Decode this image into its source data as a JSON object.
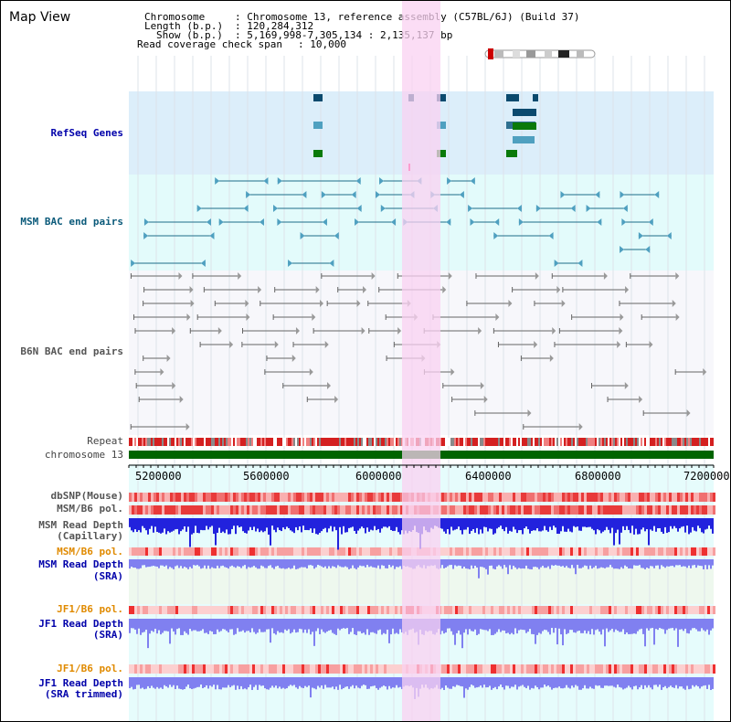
{
  "title": "Map View",
  "info": {
    "chromosome_label": "Chromosome",
    "chromosome_value": ": Chromosome 13, reference assembly (C57BL/6J) (Build 37)",
    "length_label": "Length (b.p.)",
    "length_value": ": 120,284,312",
    "show_label": "Show (b.p.)",
    "show_value": ": 5,169,998-7,305,134 : 2,135,137 bp",
    "coverage_label": "Read coverage check span",
    "coverage_value": ": 10,000"
  },
  "tracks": {
    "refseq": "RefSeq Genes",
    "msm_bac": "MSM BAC end pairs",
    "b6n_bac": "B6N BAC end pairs",
    "repeat": "Repeat",
    "chromosome": "chromosome 13",
    "dbsnp": "dbSNP(Mouse)",
    "msm_b6_pol": "MSM/B6 pol.",
    "msm_read_depth_1": "MSM Read Depth",
    "msm_read_depth_1b": "(Capillary)",
    "msm_b6_pol_2": "MSM/B6 pol.",
    "msm_read_depth_2": "MSM Read Depth",
    "msm_read_depth_2b": "(SRA)",
    "jf1_b6_pol": "JF1/B6 pol.",
    "jf1_read_depth": "JF1 Read Depth",
    "jf1_read_depth_b": "(SRA)",
    "jf1_b6_pol_2": "JF1/B6 pol.",
    "jf1_read_depth_2": "JF1 Read Depth",
    "jf1_read_depth_2b": "(SRA trimmed)"
  },
  "axis": {
    "ticks": [
      "5200000",
      "5600000",
      "6000000",
      "6400000",
      "6800000",
      "7200000"
    ]
  },
  "colors": {
    "highlight": "#f9d2f1",
    "refseq_bg": "#dceefa",
    "msm_bg": "#e3fbfb",
    "chrom_green": "#006400",
    "depth_blue": "#2222dd",
    "depth_light": "#8080f0"
  }
}
